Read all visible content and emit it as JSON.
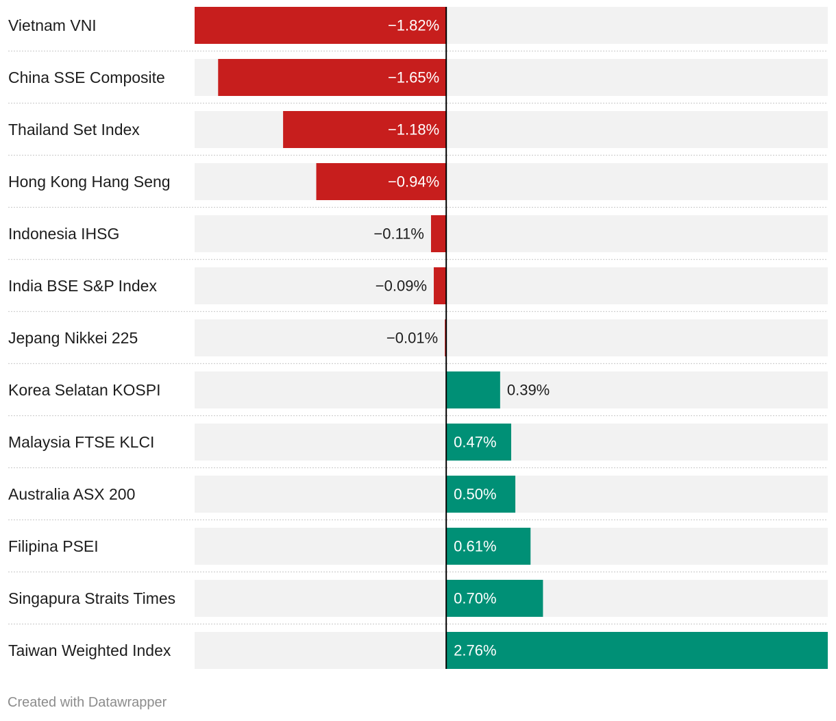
{
  "chart_data": {
    "type": "bar",
    "orientation": "horizontal",
    "categories": [
      "Vietnam VNI",
      "China SSE Composite",
      "Thailand Set Index",
      "Hong Kong Hang Seng",
      "Indonesia IHSG",
      "India BSE S&P Index",
      "Jepang Nikkei 225",
      "Korea Selatan KOSPI",
      "Malaysia FTSE KLCI",
      "Australia ASX 200",
      "Filipina PSEI",
      "Singapura Straits Times",
      "Taiwan Weighted Index"
    ],
    "values": [
      -1.82,
      -1.65,
      -1.18,
      -0.94,
      -0.11,
      -0.09,
      -0.01,
      0.39,
      0.47,
      0.5,
      0.61,
      0.7,
      2.76
    ],
    "value_labels": [
      "−1.82%",
      "−1.65%",
      "−1.18%",
      "−0.94%",
      "−0.11%",
      "−0.09%",
      "−0.01%",
      "0.39%",
      "0.47%",
      "0.50%",
      "0.61%",
      "0.70%",
      "2.76%"
    ],
    "xlim": [
      -1.82,
      2.76
    ],
    "colors": {
      "negative": "#c71e1d",
      "positive": "#009076",
      "background_bar": "#f2f2f2",
      "baseline": "#000000",
      "separator": "#d0d0d0"
    },
    "grid": false,
    "legend": "none"
  },
  "footer": {
    "credit": "Created with Datawrapper"
  }
}
